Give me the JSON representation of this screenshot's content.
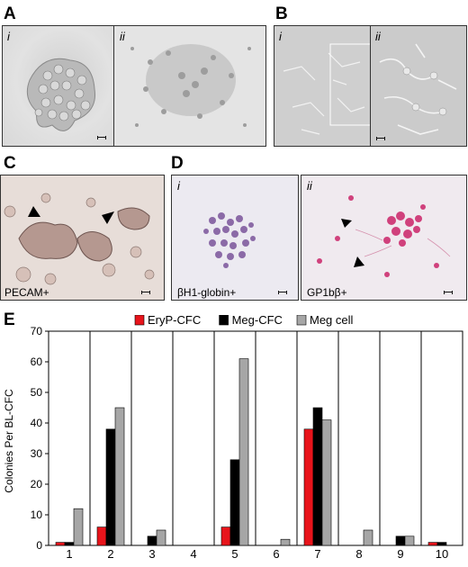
{
  "panels": {
    "A": {
      "label": "A",
      "sub": [
        "i",
        "ii"
      ]
    },
    "B": {
      "label": "B",
      "sub": [
        "i",
        "ii"
      ]
    },
    "C": {
      "label": "C",
      "caption": "PECAM+"
    },
    "D": {
      "label": "D",
      "sub": [
        "i",
        "ii"
      ],
      "captions": [
        "βH1-globin+",
        "GP1bβ+"
      ]
    },
    "E": {
      "label": "E"
    }
  },
  "chart_data": {
    "type": "bar",
    "categories": [
      "1",
      "2",
      "3",
      "4",
      "5",
      "6",
      "7",
      "8",
      "9",
      "10"
    ],
    "series": [
      {
        "name": "EryP-CFC",
        "color": "#e8141b",
        "values": [
          1,
          6,
          0,
          0,
          6,
          0,
          38,
          0,
          0,
          1
        ]
      },
      {
        "name": "Meg-CFC",
        "color": "#000000",
        "values": [
          1,
          38,
          3,
          0,
          28,
          0,
          45,
          0,
          3,
          1
        ]
      },
      {
        "name": "Meg cell",
        "color": "#a6a6a6",
        "values": [
          12,
          45,
          5,
          0,
          61,
          2,
          41,
          5,
          3,
          0
        ]
      }
    ],
    "ylabel": "Colonies Per BL-CFC",
    "ylim": [
      0,
      70
    ],
    "yticks": [
      "0",
      "10",
      "20",
      "30",
      "40",
      "50",
      "60",
      "70"
    ],
    "legend": "top"
  }
}
